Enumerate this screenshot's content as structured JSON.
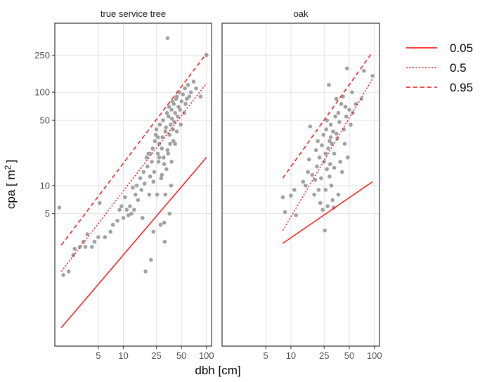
{
  "chart_data": {
    "type": "scatter",
    "xlabel": "dbh [cm]",
    "ylabel_main": "cpa [ m",
    "ylabel_sup": "2",
    "ylabel_close": "]",
    "x_scale": "log",
    "y_scale": "log",
    "xlim": [
      1.5,
      115
    ],
    "ylim": [
      0.19,
      550
    ],
    "x_ticks": [
      5,
      10,
      25,
      50,
      100
    ],
    "y_ticks": [
      5,
      10,
      50,
      100,
      250
    ],
    "grid": true,
    "legend": {
      "placement": "right",
      "entries": [
        {
          "label": "0.05",
          "dash": "solid",
          "color": "#ff0000"
        },
        {
          "label": "0.5",
          "dash": "dotted",
          "color": "#ff0000"
        },
        {
          "label": "0.95",
          "dash": "dashed",
          "color": "#ff0000"
        }
      ]
    },
    "point_color": "#a0a0a0",
    "line_color": "#ff0000",
    "panels": [
      {
        "title": "true service tree",
        "quantile_lines": [
          {
            "tau": "0.05",
            "x": [
              1.8,
              100
            ],
            "y": [
              0.3,
              20
            ]
          },
          {
            "tau": "0.5",
            "x": [
              1.8,
              100
            ],
            "y": [
              1.2,
              125
            ]
          },
          {
            "tau": "0.95",
            "x": [
              1.8,
              100
            ],
            "y": [
              2.3,
              260
            ]
          }
        ],
        "points": [
          [
            1.7,
            5.8
          ],
          [
            1.9,
            1.1
          ],
          [
            2.2,
            1.2
          ],
          [
            2.5,
            1.8
          ],
          [
            2.6,
            2.1
          ],
          [
            3.0,
            2.2
          ],
          [
            3.3,
            2.5
          ],
          [
            3.5,
            2.2
          ],
          [
            3.7,
            3.0
          ],
          [
            4.2,
            2.2
          ],
          [
            4.5,
            2.5
          ],
          [
            5.0,
            2.8
          ],
          [
            5.2,
            6.5
          ],
          [
            6.0,
            2.8
          ],
          [
            7.0,
            3.2
          ],
          [
            7.5,
            3.8
          ],
          [
            8.5,
            4.2
          ],
          [
            9.0,
            5.5
          ],
          [
            9.5,
            6.0
          ],
          [
            10.0,
            4.5
          ],
          [
            10.5,
            7.5
          ],
          [
            11.0,
            5.5
          ],
          [
            11.5,
            4.8
          ],
          [
            12.0,
            6.0
          ],
          [
            12.5,
            5.0
          ],
          [
            13.0,
            9.5
          ],
          [
            13.5,
            5.5
          ],
          [
            14.0,
            8.0
          ],
          [
            14.5,
            10.0
          ],
          [
            15.0,
            7.0
          ],
          [
            16.0,
            12.0
          ],
          [
            16.5,
            9.0
          ],
          [
            17.0,
            4.5
          ],
          [
            17.5,
            14.0
          ],
          [
            18.0,
            10.5
          ],
          [
            18.5,
            1.2
          ],
          [
            19.0,
            20.0
          ],
          [
            19.5,
            16.0
          ],
          [
            20.0,
            22.0
          ],
          [
            20.5,
            8.0
          ],
          [
            21.0,
            12.5
          ],
          [
            21.5,
            1.6
          ],
          [
            22.0,
            18.0
          ],
          [
            22.5,
            25.0
          ],
          [
            23.0,
            3.2
          ],
          [
            23.5,
            14.0
          ],
          [
            24.0,
            30.0
          ],
          [
            24.5,
            35.0
          ],
          [
            25.0,
            40.0
          ],
          [
            25.5,
            8.0
          ],
          [
            26.0,
            22.0
          ],
          [
            26.5,
            18.0
          ],
          [
            27.0,
            28.0
          ],
          [
            27.5,
            45.0
          ],
          [
            28.0,
            3.8
          ],
          [
            28.5,
            12.0
          ],
          [
            29.0,
            25.0
          ],
          [
            29.5,
            33.0
          ],
          [
            30.0,
            50.0
          ],
          [
            30.5,
            20.0
          ],
          [
            31.0,
            4.0
          ],
          [
            31.5,
            2.5
          ],
          [
            32.0,
            38.0
          ],
          [
            32.5,
            42.0
          ],
          [
            33.0,
            15.0
          ],
          [
            33.5,
            60.0
          ],
          [
            34.0,
            380.0
          ],
          [
            34.5,
            22.0
          ],
          [
            35.0,
            55.0
          ],
          [
            35.5,
            70.0
          ],
          [
            36.0,
            35.0
          ],
          [
            36.5,
            28.0
          ],
          [
            37.0,
            45.0
          ],
          [
            37.5,
            10.0
          ],
          [
            38.0,
            65.0
          ],
          [
            38.5,
            52.0
          ],
          [
            39.0,
            80.0
          ],
          [
            39.5,
            40.0
          ],
          [
            40.0,
            30.0
          ],
          [
            40.5,
            75.0
          ],
          [
            41.0,
            48.0
          ],
          [
            42.0,
            60.0
          ],
          [
            43.0,
            85.0
          ],
          [
            44.0,
            90.0
          ],
          [
            45.0,
            55.0
          ],
          [
            46.0,
            70.0
          ],
          [
            47.0,
            100.0
          ],
          [
            48.0,
            65.0
          ],
          [
            49.0,
            45.0
          ],
          [
            50.0,
            80.0
          ],
          [
            52.0,
            95.0
          ],
          [
            54.0,
            60.0
          ],
          [
            55.0,
            110.0
          ],
          [
            56.0,
            75.0
          ],
          [
            58.0,
            85.0
          ],
          [
            60.0,
            120.0
          ],
          [
            62.0,
            90.0
          ],
          [
            65.0,
            100.0
          ],
          [
            70.0,
            130.0
          ],
          [
            75.0,
            110.0
          ],
          [
            85.0,
            90.0
          ],
          [
            100.0,
            250.0
          ],
          [
            27.0,
            20.0
          ],
          [
            29.0,
            13.0
          ],
          [
            31.0,
            17.0
          ],
          [
            34.0,
            24.0
          ],
          [
            26.0,
            33.0
          ],
          [
            38.0,
            18.0
          ],
          [
            44.0,
            38.0
          ],
          [
            42.0,
            28.0
          ],
          [
            21.0,
            22.0
          ],
          [
            23.0,
            11.0
          ],
          [
            32.0,
            8.0
          ],
          [
            36.0,
            5.0
          ]
        ]
      },
      {
        "title": "oak",
        "quantile_lines": [
          {
            "tau": "0.05",
            "x": [
              8,
              95
            ],
            "y": [
              2.4,
              11
            ]
          },
          {
            "tau": "0.5",
            "x": [
              8,
              95
            ],
            "y": [
              3.3,
              140
            ]
          },
          {
            "tau": "0.95",
            "x": [
              8,
              95
            ],
            "y": [
              12,
              270
            ]
          }
        ],
        "points": [
          [
            8.0,
            7.5
          ],
          [
            8.5,
            5.2
          ],
          [
            10.0,
            7.8
          ],
          [
            11.0,
            9.0
          ],
          [
            11.5,
            4.8
          ],
          [
            14.0,
            11.0
          ],
          [
            15.0,
            10.0
          ],
          [
            16.0,
            14.0
          ],
          [
            16.5,
            19.0
          ],
          [
            17.0,
            43.0
          ],
          [
            18.0,
            13.0
          ],
          [
            19.0,
            8.0
          ],
          [
            19.5,
            11.5
          ],
          [
            20.0,
            24.0
          ],
          [
            20.5,
            16.0
          ],
          [
            21.0,
            30.0
          ],
          [
            21.5,
            9.0
          ],
          [
            22.0,
            20.0
          ],
          [
            22.5,
            6.5
          ],
          [
            23.0,
            12.0
          ],
          [
            23.5,
            27.0
          ],
          [
            24.0,
            5.5
          ],
          [
            24.5,
            35.0
          ],
          [
            25.0,
            18.0
          ],
          [
            25.5,
            3.3
          ],
          [
            26.0,
            22.0
          ],
          [
            26.5,
            40.0
          ],
          [
            27.0,
            15.0
          ],
          [
            27.5,
            6.0
          ],
          [
            28.0,
            25.0
          ],
          [
            28.5,
            120.0
          ],
          [
            29.0,
            30.0
          ],
          [
            29.5,
            17.0
          ],
          [
            30.0,
            45.0
          ],
          [
            30.5,
            10.0
          ],
          [
            31.0,
            28.0
          ],
          [
            31.5,
            7.0
          ],
          [
            32.0,
            38.0
          ],
          [
            32.5,
            5.8
          ],
          [
            33.0,
            22.0
          ],
          [
            34.0,
            55.0
          ],
          [
            35.0,
            85.0
          ],
          [
            36.0,
            32.0
          ],
          [
            37.0,
            60.0
          ],
          [
            38.0,
            48.0
          ],
          [
            39.0,
            18.0
          ],
          [
            40.0,
            75.0
          ],
          [
            41.0,
            14.0
          ],
          [
            42.0,
            90.0
          ],
          [
            43.0,
            40.0
          ],
          [
            44.0,
            28.0
          ],
          [
            45.0,
            70.0
          ],
          [
            46.0,
            55.0
          ],
          [
            47.0,
            180.0
          ],
          [
            48.0,
            20.0
          ],
          [
            50.0,
            65.0
          ],
          [
            52.0,
            45.0
          ],
          [
            54.0,
            100.0
          ],
          [
            55.0,
            60.0
          ],
          [
            60.0,
            75.0
          ],
          [
            70.0,
            85.0
          ],
          [
            75.0,
            170.0
          ],
          [
            95.0,
            150.0
          ],
          [
            26.0,
            9.0
          ],
          [
            29.0,
            12.5
          ],
          [
            33.0,
            15.5
          ],
          [
            35.0,
            36.0
          ],
          [
            30.0,
            33.0
          ],
          [
            37.0,
            8.0
          ],
          [
            27.0,
            50.0
          ]
        ]
      }
    ]
  }
}
